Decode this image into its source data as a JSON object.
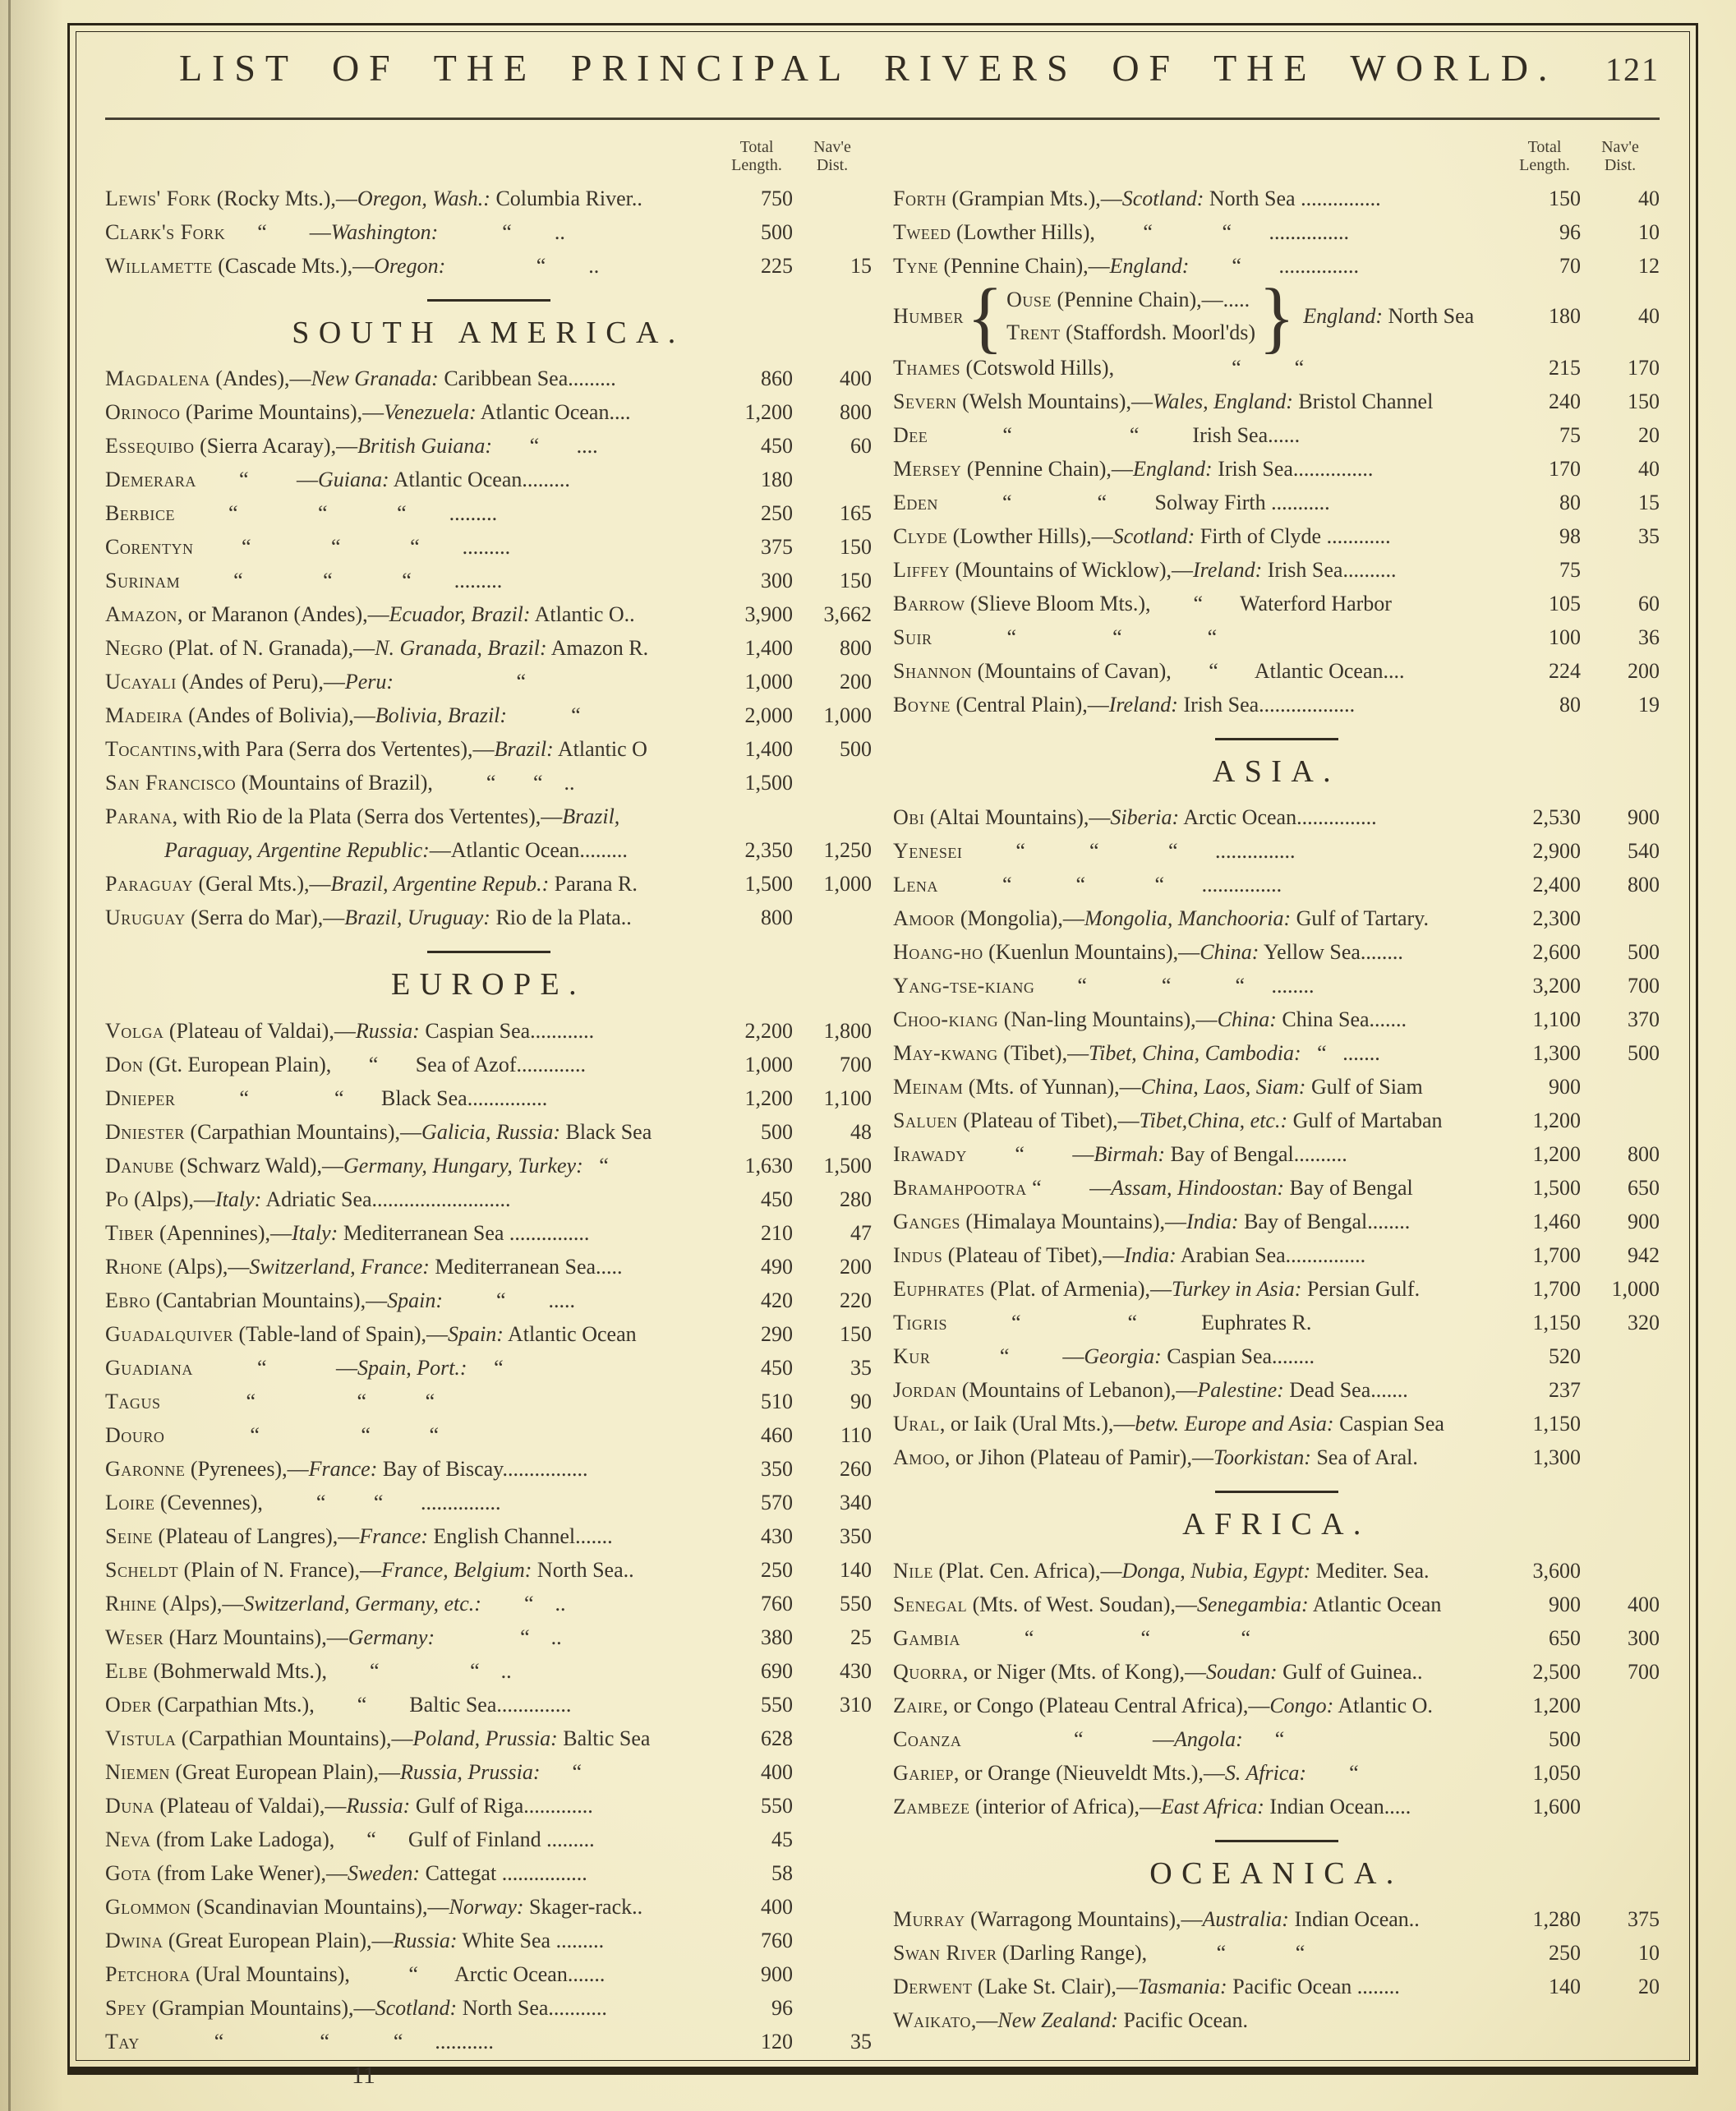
{
  "page": {
    "title": "LIST OF THE PRINCIPAL RIVERS OF THE WORLD.",
    "page_number": "121",
    "signature_mark": "11",
    "paper_color": "#f2ecc8",
    "ink_color": "#39332a"
  },
  "column_headers": {
    "total_line1": "Total",
    "total_line2": "Length.",
    "nav_line1": "Nav'e",
    "nav_line2": "Dist."
  },
  "left_groups": [
    {
      "heading": null,
      "rows": [
        {
          "name": "Lewis' Fork",
          "text": " (Rocky Mts.),—*Oregon, Wash.:* Columbia River..",
          "total": "750",
          "nav": ""
        },
        {
          "name": "Clark's Fork",
          "text": "      “        —*Washington:*            “        ..",
          "total": "500",
          "nav": ""
        },
        {
          "name": "Willamette",
          "text": " (Cascade Mts.),—*Oregon:*                 “        ..",
          "total": "225",
          "nav": "15"
        }
      ]
    },
    {
      "heading": "SOUTH AMERICA.",
      "rows": [
        {
          "name": "Magdalena",
          "text": " (Andes),—*New Granada:* Caribbean Sea.........",
          "total": "860",
          "nav": "400"
        },
        {
          "name": "Orinoco",
          "text": " (Parime Mountains),—*Venezuela:* Atlantic Ocean....",
          "total": "1,200",
          "nav": "800"
        },
        {
          "name": "Essequibo",
          "text": " (Sierra Acaray),—*British Guiana:*       “       ....",
          "total": "450",
          "nav": "60"
        },
        {
          "name": "Demerara",
          "text": "        “         —*Guiana:* Atlantic Ocean.........",
          "total": "180",
          "nav": ""
        },
        {
          "name": "Berbice",
          "text": "          “               “             “        .........",
          "total": "250",
          "nav": "165"
        },
        {
          "name": "Corentyn",
          "text": "         “               “             “        .........",
          "total": "375",
          "nav": "150"
        },
        {
          "name": "Surinam",
          "text": "          “               “             “        .........",
          "total": "300",
          "nav": "150"
        },
        {
          "name": "Amazon",
          "text": ", or Maranon (Andes),—*Ecuador, Brazil:* Atlantic O..",
          "total": "3,900",
          "nav": "3,662"
        },
        {
          "name": "Negro",
          "text": " (Plat. of N. Granada),—*N. Granada, Brazil:* Amazon R.",
          "total": "1,400",
          "nav": "800"
        },
        {
          "name": "Ucayali",
          "text": " (Andes of Peru),—*Peru:*                       “ ",
          "total": "1,000",
          "nav": "200"
        },
        {
          "name": "Madeira",
          "text": " (Andes of Bolivia),—*Bolivia, Brazil:*            “ ",
          "total": "2,000",
          "nav": "1,000"
        },
        {
          "name": "Tocantins",
          "text": ",with Para (Serra dos Vertentes),—*Brazil:* Atlantic O",
          "total": "1,400",
          "nav": "500"
        },
        {
          "name": "San Francisco",
          "text": " (Mountains of Brazil),          “       “    ..",
          "total": "1,500",
          "nav": ""
        },
        {
          "name": "Parana",
          "text": ", with Rio de la Plata (Serra dos Vertentes),—*Brazil,*",
          "total": "",
          "nav": ""
        },
        {
          "name": "",
          "indent": true,
          "text": "*Paraguay, Argentine Republic:*—Atlantic Ocean.........",
          "total": "2,350",
          "nav": "1,250"
        },
        {
          "name": "Paraguay",
          "text": " (Geral Mts.),—*Brazil, Argentine Repub.:* Parana R.",
          "total": "1,500",
          "nav": "1,000"
        },
        {
          "name": "Uruguay",
          "text": " (Serra do Mar),—*Brazil, Uruguay:* Rio de la Plata..",
          "total": "800",
          "nav": ""
        }
      ]
    },
    {
      "heading": "EUROPE.",
      "rows": [
        {
          "name": "Volga",
          "text": " (Plateau of Valdai),—*Russia:* Caspian Sea............",
          "total": "2,200",
          "nav": "1,800"
        },
        {
          "name": "Don",
          "text": " (Gt. European Plain),       “       Sea of Azof.............",
          "total": "1,000",
          "nav": "700"
        },
        {
          "name": "Dnieper",
          "text": "            “                “       Black Sea...............",
          "total": "1,200",
          "nav": "1,100"
        },
        {
          "name": "Dniester",
          "text": " (Carpathian Mountains),—*Galicia, Russia:* Black Sea",
          "total": "500",
          "nav": "48"
        },
        {
          "name": "Danube",
          "text": " (Schwarz Wald),—*Germany, Hungary, Turkey:*   “ ",
          "total": "1,630",
          "nav": "1,500"
        },
        {
          "name": "Po",
          "text": " (Alps),—*Italy:* Adriatic Sea..........................",
          "total": "450",
          "nav": "280"
        },
        {
          "name": "Tiber",
          "text": " (Apennines),—*Italy:* Mediterranean Sea ...............",
          "total": "210",
          "nav": "47"
        },
        {
          "name": "Rhone",
          "text": " (Alps),—*Switzerland, France:* Mediterranean Sea.....",
          "total": "490",
          "nav": "200"
        },
        {
          "name": "Ebro",
          "text": " (Cantabrian Mountains),—*Spain:*          “        .....",
          "total": "420",
          "nav": "220"
        },
        {
          "name": "Guadalquiver",
          "text": " (Table-land of Spain),—*Spain:* Atlantic Ocean",
          "total": "290",
          "nav": "150"
        },
        {
          "name": "Guadiana",
          "text": "            “             —*Spain, Port.:*     “ ",
          "total": "450",
          "nav": "35"
        },
        {
          "name": "Tagus",
          "text": "                “                   “           “ ",
          "total": "510",
          "nav": "90"
        },
        {
          "name": "Douro",
          "text": "                “                   “           “ ",
          "total": "460",
          "nav": "110"
        },
        {
          "name": "Garonne",
          "text": " (Pyrenees),—*France:* Bay of Biscay................",
          "total": "350",
          "nav": "260"
        },
        {
          "name": "Loire",
          "text": " (Cevennes),          “         “       ...............",
          "total": "570",
          "nav": "340"
        },
        {
          "name": "Seine",
          "text": " (Plateau of Langres),—*France:* English Channel.......",
          "total": "430",
          "nav": "350"
        },
        {
          "name": "Scheldt",
          "text": " (Plain of N. France),—*France, Belgium:* North Sea..",
          "total": "250",
          "nav": "140"
        },
        {
          "name": "Rhine",
          "text": " (Alps),—*Switzerland, Germany, etc.:*        “    ..",
          "total": "760",
          "nav": "550"
        },
        {
          "name": "Weser",
          "text": " (Harz Mountains),—*Germany:*                “    ..",
          "total": "380",
          "nav": "25"
        },
        {
          "name": "Elbe",
          "text": " (Bohmerwald Mts.),        “                 “    ..",
          "total": "690",
          "nav": "430"
        },
        {
          "name": "Oder",
          "text": " (Carpathian Mts.),        “        Baltic Sea..............",
          "total": "550",
          "nav": "310"
        },
        {
          "name": "Vistula",
          "text": " (Carpathian Mountains),—*Poland, Prussia:* Baltic Sea",
          "total": "628",
          "nav": ""
        },
        {
          "name": "Niemen",
          "text": " (Great European Plain),—*Russia, Prussia:*      “ ",
          "total": "400",
          "nav": ""
        },
        {
          "name": "Duna",
          "text": " (Plateau of Valdai),—*Russia:* Gulf of Riga.............",
          "total": "550",
          "nav": ""
        },
        {
          "name": "Neva",
          "text": " (from Lake Ladoga),      “      Gulf of Finland .........",
          "total": "45",
          "nav": ""
        },
        {
          "name": "Gota",
          "text": " (from Lake Wener),—*Sweden:* Cattegat ................",
          "total": "58",
          "nav": ""
        },
        {
          "name": "Glommon",
          "text": " (Scandinavian Mountains),—*Norway:* Skager-rack..",
          "total": "400",
          "nav": ""
        },
        {
          "name": "Dwina",
          "text": " (Great European Plain),—*Russia:* White Sea .........",
          "total": "760",
          "nav": ""
        },
        {
          "name": "Petchora",
          "text": " (Ural Mountains),           “       Arctic Ocean.......",
          "total": "900",
          "nav": ""
        },
        {
          "name": "Spey",
          "text": " (Grampian Mountains),—*Scotland:* North Sea...........",
          "total": "96",
          "nav": ""
        },
        {
          "name": "Tay",
          "text": "              “                  “            “      ...........",
          "total": "120",
          "nav": "35"
        }
      ]
    }
  ],
  "right_groups": [
    {
      "heading": null,
      "rows": [
        {
          "name": "Forth",
          "text": " (Grampian Mts.),—*Scotland:* North Sea ...............",
          "total": "150",
          "nav": "40"
        },
        {
          "name": "Tweed",
          "text": " (Lowther Hills),         “             “       ...............",
          "total": "96",
          "nav": "10"
        },
        {
          "name": "Tyne",
          "text": " (Pennine Chain),—*England:*        “       ...............",
          "total": "70",
          "nav": "12"
        },
        {
          "type": "humber",
          "name": "Humber",
          "upper_name": "Ouse",
          "upper_rest": " (Pennine Chain),—.....",
          "lower_name": "Trent",
          "lower_rest": " (Staffordsh. Moorl'ds)",
          "tail": "*England:* North Sea",
          "total": "180",
          "nav": "40"
        },
        {
          "name": "Thames",
          "text": " (Cotswold Hills),                      “          “ ",
          "total": "215",
          "nav": "170"
        },
        {
          "name": "Severn",
          "text": " (Welsh Mountains),—*Wales, England:* Bristol Channel",
          "total": "240",
          "nav": "150"
        },
        {
          "name": "Dee",
          "text": "              “                      “          Irish Sea......",
          "total": "75",
          "nav": "20"
        },
        {
          "name": "Mersey",
          "text": " (Pennine Chain),—*England:* Irish Sea...............",
          "total": "170",
          "nav": "40"
        },
        {
          "name": "Eden",
          "text": "            “                “         Solway Firth ...........",
          "total": "80",
          "nav": "15"
        },
        {
          "name": "Clyde",
          "text": " (Lowther Hills),—*Scotland:* Firth of Clyde ............",
          "total": "98",
          "nav": "35"
        },
        {
          "name": "Liffey",
          "text": " (Mountains of Wicklow),—*Ireland:* Irish Sea..........",
          "total": "75",
          "nav": ""
        },
        {
          "name": "Barrow",
          "text": " (Slieve Bloom Mts.),        “       Waterford Harbor",
          "total": "105",
          "nav": "60"
        },
        {
          "name": "Suir",
          "text": "              “                  “                “ ",
          "total": "100",
          "nav": "36"
        },
        {
          "name": "Shannon",
          "text": " (Mountains of Cavan),       “       Atlantic Ocean....",
          "total": "224",
          "nav": "200"
        },
        {
          "name": "Boyne",
          "text": " (Central Plain),—*Ireland:* Irish Sea..................",
          "total": "80",
          "nav": "19"
        }
      ]
    },
    {
      "heading": "ASIA.",
      "rows": [
        {
          "name": "Obi",
          "text": " (Altai Mountains),—*Siberia:* Arctic Ocean...............",
          "total": "2,530",
          "nav": "900"
        },
        {
          "name": "Yenesei",
          "text": "          “            “             “       ...............",
          "total": "2,900",
          "nav": "540"
        },
        {
          "name": "Lena",
          "text": "            “            “             “       ...............",
          "total": "2,400",
          "nav": "800"
        },
        {
          "name": "Amoor",
          "text": " (Mongolia),—*Mongolia, Manchooria:* Gulf of Tartary.",
          "total": "2,300",
          "nav": ""
        },
        {
          "name": "Hoang-ho",
          "text": " (Kuenlun Mountains),—*China:* Yellow Sea........",
          "total": "2,600",
          "nav": "500"
        },
        {
          "name": "Yang-tse-kiang",
          "text": "        “              “            “     ........",
          "total": "3,200",
          "nav": "700"
        },
        {
          "name": "Choo-kiang",
          "text": " (Nan-ling Mountains),—*China:* China Sea.......",
          "total": "1,100",
          "nav": "370"
        },
        {
          "name": "May-kwang",
          "text": " (Tibet),—*Tibet, China, Cambodia:*   “   .......",
          "total": "1,300",
          "nav": "500"
        },
        {
          "name": "Meinam",
          "text": " (Mts. of Yunnan),—*China, Laos, Siam:* Gulf of Siam",
          "total": "900",
          "nav": ""
        },
        {
          "name": "Saluen",
          "text": " (Plateau of Tibet),—*Tibet,China, etc.:* Gulf of Martaban",
          "total": "1,200",
          "nav": ""
        },
        {
          "name": "Irawady",
          "text": "         “         —*Birmah:* Bay of Bengal..........",
          "total": "1,200",
          "nav": "800"
        },
        {
          "name": "Bramahpootra",
          "text": " “         —*Assam, Hindoostan:* Bay of Bengal",
          "total": "1,500",
          "nav": "650"
        },
        {
          "name": "Ganges",
          "text": " (Himalaya Mountains),—*India:* Bay of Bengal........",
          "total": "1,460",
          "nav": "900"
        },
        {
          "name": "Indus",
          "text": " (Plateau of Tibet),—*India:* Arabian Sea...............",
          "total": "1,700",
          "nav": "942"
        },
        {
          "name": "Euphrates",
          "text": " (Plat. of Armenia),—*Turkey in Asia:* Persian Gulf.",
          "total": "1,700",
          "nav": "1,000"
        },
        {
          "name": "Tigris",
          "text": "            “                    “            Euphrates R.",
          "total": "1,150",
          "nav": "320"
        },
        {
          "name": "Kur",
          "text": "             “          —*Georgia:* Caspian Sea........",
          "total": "520",
          "nav": ""
        },
        {
          "name": "Jordan",
          "text": " (Mountains of Lebanon),—*Palestine:* Dead Sea.......",
          "total": "237",
          "nav": ""
        },
        {
          "name": "Ural",
          "text": ", or Iaik (Ural Mts.),—*betw. Europe and Asia:* Caspian Sea",
          "total": "1,150",
          "nav": ""
        },
        {
          "name": "Amoo",
          "text": ", or Jihon (Plateau of Pamir),—*Toorkistan:* Sea of Aral.",
          "total": "1,300",
          "nav": ""
        }
      ]
    },
    {
      "heading": "AFRICA.",
      "rows": [
        {
          "name": "Nile",
          "text": " (Plat. Cen. Africa),—*Donga, Nubia, Egypt:* Mediter. Sea.",
          "total": "3,600",
          "nav": ""
        },
        {
          "name": "Senegal",
          "text": " (Mts. of West. Soudan),—*Senegambia:* Atlantic Ocean",
          "total": "900",
          "nav": "400"
        },
        {
          "name": "Gambia",
          "text": "            “                    “                 “ ",
          "total": "650",
          "nav": "300"
        },
        {
          "name": "Quorra",
          "text": ", or Niger (Mts. of Kong),—*Soudan:* Gulf of Guinea..",
          "total": "2,500",
          "nav": "700"
        },
        {
          "name": "Zaire",
          "text": ", or Congo (Plateau Central Africa),—*Congo:* Atlantic O.",
          "total": "1,200",
          "nav": ""
        },
        {
          "name": "Coanza",
          "text": "                     “             —*Angola:*      “ ",
          "total": "500",
          "nav": ""
        },
        {
          "name": "Gariep",
          "text": ", or Orange (Nieuveldt Mts.),—*S. Africa:*        “ ",
          "total": "1,050",
          "nav": ""
        },
        {
          "name": "Zambeze",
          "text": " (interior of Africa),—*East Africa:* Indian Ocean.....",
          "total": "1,600",
          "nav": ""
        }
      ]
    },
    {
      "heading": "OCEANICA.",
      "rows": [
        {
          "name": "Murray",
          "text": " (Warragong Mountains),—*Australia:* Indian Ocean..",
          "total": "1,280",
          "nav": "375"
        },
        {
          "name": "Swan River",
          "text": " (Darling Range),             “             “ ",
          "total": "250",
          "nav": "10"
        },
        {
          "name": "Derwent",
          "text": " (Lake St. Clair),—*Tasmania:* Pacific Ocean ........",
          "total": "140",
          "nav": "20"
        },
        {
          "name": "Waikato",
          "text": ",—*New Zealand:* Pacific Ocean.",
          "total": "",
          "nav": ""
        }
      ]
    }
  ]
}
